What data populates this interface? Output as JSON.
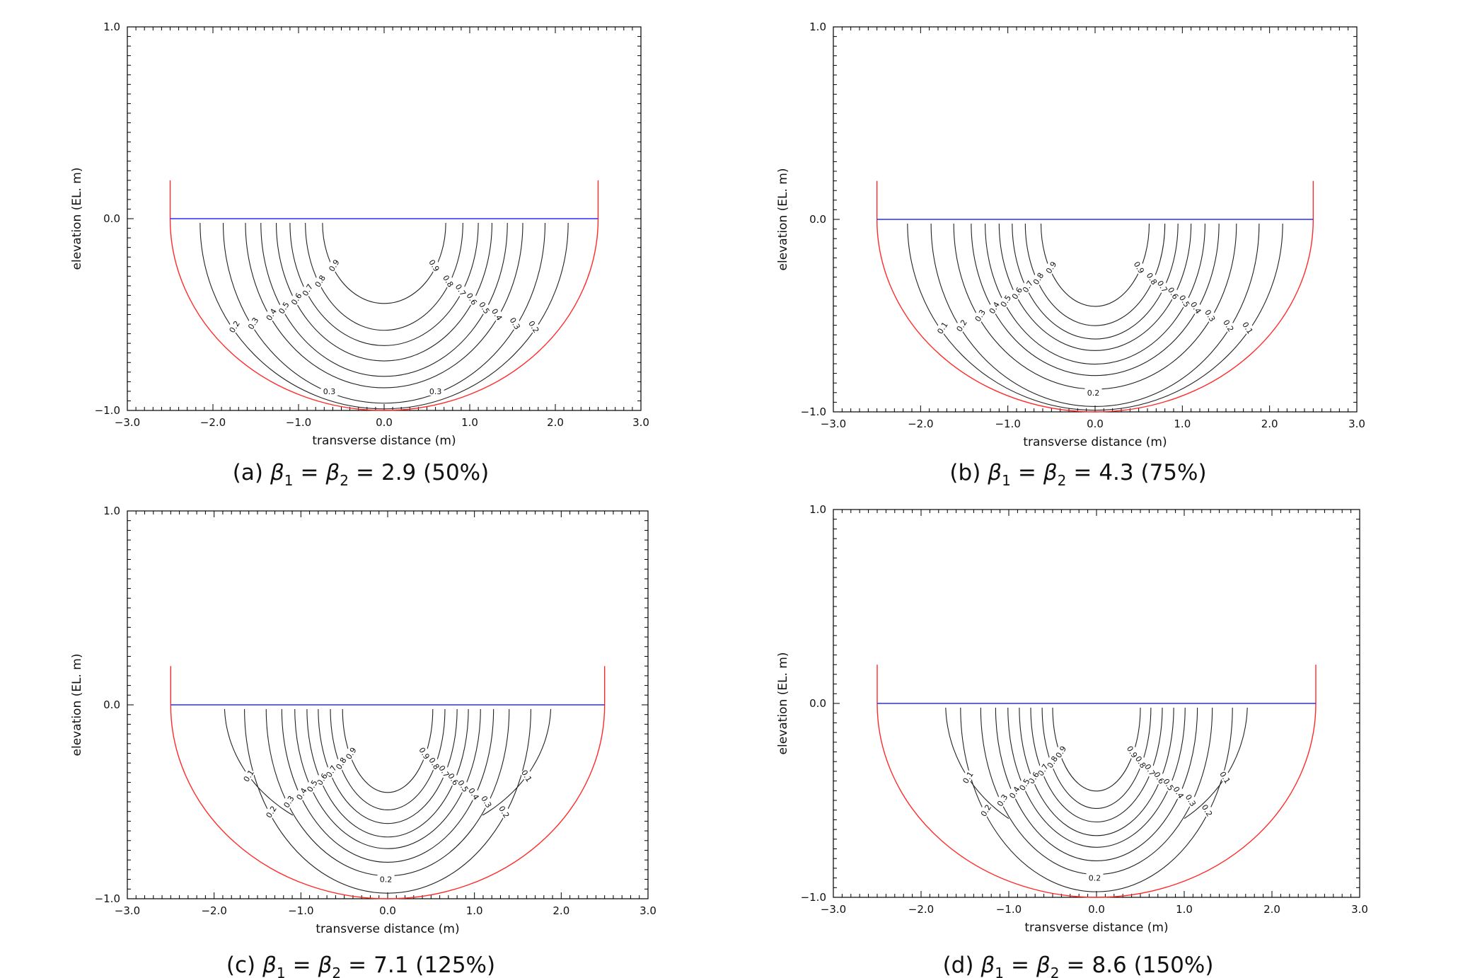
{
  "figure": {
    "colors": {
      "channel": "#ff2a2a",
      "water_surface": "#2b2bff",
      "contour": "#222222",
      "axes": "#000000"
    },
    "symbol_beta": "β"
  },
  "chart_data": [
    {
      "type": "contour",
      "panel": "a",
      "caption_prefix": "(a)",
      "caption_value": "2.9 (50%)",
      "xlabel": "transverse distance (m)",
      "ylabel": "elevation (EL. m)",
      "xlim": [
        -3.0,
        3.0
      ],
      "ylim": [
        -1.0,
        1.0
      ],
      "x_ticks": [
        "−3.0",
        "−2.0",
        "−1.0",
        "0.0",
        "1.0",
        "2.0",
        "3.0"
      ],
      "y_ticks": [
        "−1.0",
        "0.0",
        "1.0"
      ],
      "channel_half_width": 2.5,
      "bank_top": 0.2,
      "water_level": 0.0,
      "levels": [
        {
          "value": 0.9,
          "label": "0.9",
          "half_width": 0.72,
          "depth": 0.42
        },
        {
          "value": 0.8,
          "label": "0.8",
          "half_width": 0.92,
          "depth": 0.56
        },
        {
          "value": 0.7,
          "label": "0.7",
          "half_width": 1.1,
          "depth": 0.64
        },
        {
          "value": 0.6,
          "label": "0.6",
          "half_width": 1.26,
          "depth": 0.72
        },
        {
          "value": 0.5,
          "label": "0.5",
          "half_width": 1.44,
          "depth": 0.8
        },
        {
          "value": 0.4,
          "label": "0.4",
          "half_width": 1.62,
          "depth": 0.86
        },
        {
          "value": 0.3,
          "label": "0.3",
          "half_width": 1.88,
          "depth": 0.94
        },
        {
          "value": 0.2,
          "label": "0.2",
          "half_width": 2.15,
          "depth": 0.97
        }
      ],
      "bottom_labels": [
        "0.3",
        "0.3"
      ]
    },
    {
      "type": "contour",
      "panel": "b",
      "caption_prefix": "(b)",
      "caption_value": "4.3 (75%)",
      "xlabel": "transverse distance (m)",
      "ylabel": "elevation (EL. m)",
      "xlim": [
        -3.0,
        3.0
      ],
      "ylim": [
        -1.0,
        1.0
      ],
      "x_ticks": [
        "−3.0",
        "−2.0",
        "−1.0",
        "0.0",
        "1.0",
        "2.0",
        "3.0"
      ],
      "y_ticks": [
        "−1.0",
        "0.0",
        "1.0"
      ],
      "channel_half_width": 2.5,
      "bank_top": 0.2,
      "water_level": 0.0,
      "levels": [
        {
          "value": 0.9,
          "label": "0.9",
          "half_width": 0.62,
          "depth": 0.43
        },
        {
          "value": 0.8,
          "label": "0.8",
          "half_width": 0.8,
          "depth": 0.53
        },
        {
          "value": 0.7,
          "label": "0.7",
          "half_width": 0.95,
          "depth": 0.6
        },
        {
          "value": 0.6,
          "label": "0.6",
          "half_width": 1.1,
          "depth": 0.66
        },
        {
          "value": 0.5,
          "label": "0.5",
          "half_width": 1.26,
          "depth": 0.73
        },
        {
          "value": 0.4,
          "label": "0.4",
          "half_width": 1.42,
          "depth": 0.79
        },
        {
          "value": 0.3,
          "label": "0.3",
          "half_width": 1.62,
          "depth": 0.86
        },
        {
          "value": 0.2,
          "label": "0.2",
          "half_width": 1.88,
          "depth": 0.95
        },
        {
          "value": 0.1,
          "label": "0.1",
          "half_width": 2.15,
          "depth": 0.97
        }
      ],
      "bottom_labels": [
        "0.2"
      ]
    },
    {
      "type": "contour",
      "panel": "c",
      "caption_prefix": "(c)",
      "caption_value": "7.1 (125%)",
      "xlabel": "transverse distance (m)",
      "ylabel": "elevation (EL. m)",
      "xlim": [
        -3.0,
        3.0
      ],
      "ylim": [
        -1.0,
        1.0
      ],
      "x_ticks": [
        "−3.0",
        "−2.0",
        "−1.0",
        "0.0",
        "1.0",
        "2.0",
        "3.0"
      ],
      "y_ticks": [
        "−1.0",
        "0.0",
        "1.0"
      ],
      "channel_half_width": 2.5,
      "bank_top": 0.2,
      "water_level": 0.0,
      "levels": [
        {
          "value": 0.9,
          "label": "0.9",
          "half_width": 0.52,
          "depth": 0.43
        },
        {
          "value": 0.8,
          "label": "0.8",
          "half_width": 0.66,
          "depth": 0.52
        },
        {
          "value": 0.7,
          "label": "0.7",
          "half_width": 0.8,
          "depth": 0.59
        },
        {
          "value": 0.6,
          "label": "0.6",
          "half_width": 0.93,
          "depth": 0.66
        },
        {
          "value": 0.5,
          "label": "0.5",
          "half_width": 1.07,
          "depth": 0.72
        },
        {
          "value": 0.4,
          "label": "0.4",
          "half_width": 1.22,
          "depth": 0.79
        },
        {
          "value": 0.3,
          "label": "0.3",
          "half_width": 1.4,
          "depth": 0.86
        },
        {
          "value": 0.2,
          "label": "0.2",
          "half_width": 1.65,
          "depth": 0.95
        },
        {
          "value": 0.1,
          "label": "0.1",
          "half_width": 1.88,
          "depth": 0.7,
          "open": true
        }
      ],
      "bottom_labels": [
        "0.2"
      ]
    },
    {
      "type": "contour",
      "panel": "d",
      "caption_prefix": "(d)",
      "caption_value": "8.6 (150%)",
      "xlabel": "transverse distance (m)",
      "ylabel": "elevation (EL. m)",
      "xlim": [
        -3.0,
        3.0
      ],
      "ylim": [
        -1.0,
        1.0
      ],
      "x_ticks": [
        "−3.0",
        "−2.0",
        "−1.0",
        "0.0",
        "1.0",
        "2.0",
        "3.0"
      ],
      "y_ticks": [
        "−1.0",
        "0.0",
        "1.0"
      ],
      "channel_half_width": 2.5,
      "bank_top": 0.2,
      "water_level": 0.0,
      "levels": [
        {
          "value": 0.9,
          "label": "0.9",
          "half_width": 0.5,
          "depth": 0.43
        },
        {
          "value": 0.8,
          "label": "0.8",
          "half_width": 0.62,
          "depth": 0.52
        },
        {
          "value": 0.7,
          "label": "0.7",
          "half_width": 0.75,
          "depth": 0.59
        },
        {
          "value": 0.6,
          "label": "0.6",
          "half_width": 0.88,
          "depth": 0.66
        },
        {
          "value": 0.5,
          "label": "0.5",
          "half_width": 1.01,
          "depth": 0.72
        },
        {
          "value": 0.4,
          "label": "0.4",
          "half_width": 1.15,
          "depth": 0.79
        },
        {
          "value": 0.3,
          "label": "0.3",
          "half_width": 1.32,
          "depth": 0.86
        },
        {
          "value": 0.2,
          "label": "0.2",
          "half_width": 1.55,
          "depth": 0.95
        },
        {
          "value": 0.1,
          "label": "0.1",
          "half_width": 1.72,
          "depth": 0.73,
          "open": true
        }
      ],
      "bottom_labels": [
        "0.2"
      ]
    }
  ]
}
